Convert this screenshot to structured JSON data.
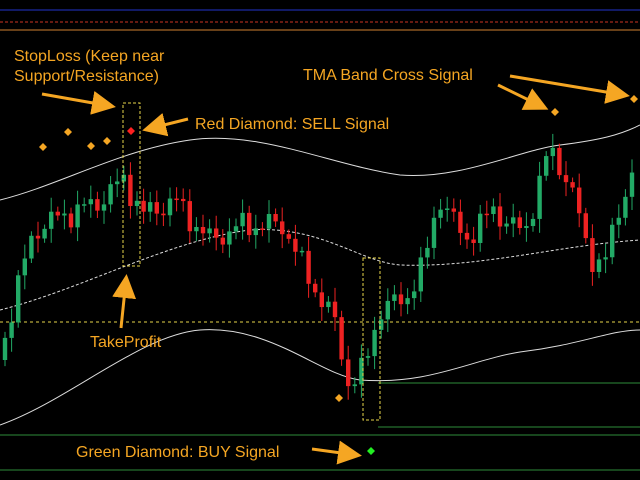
{
  "annotations": {
    "stoploss": [
      "StopLoss (Keep near",
      "Support/Resistance)"
    ],
    "tma_cross": "TMA Band Cross Signal",
    "sell": "Red Diamond: SELL Signal",
    "takeprofit": "TakeProfit",
    "buy": "Green Diamond: BUY Signal"
  }
}
